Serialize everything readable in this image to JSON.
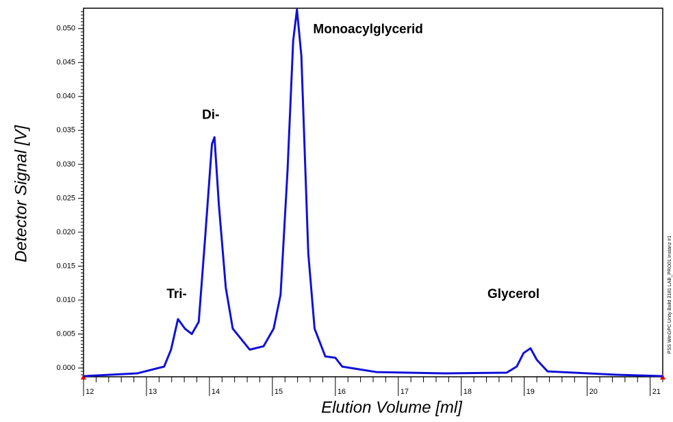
{
  "chart_data": {
    "type": "line",
    "y_label": "Detector Signal [V]",
    "x_label": "Elution Volume [ml]",
    "side_note": "PSS WinGPC Unity  Build 3181  LAB_PRO01  Instanz #1",
    "x": [
      12.0,
      12.85,
      13.28,
      13.39,
      13.5,
      13.61,
      13.72,
      13.83,
      13.93,
      14.04,
      14.08,
      14.15,
      14.26,
      14.37,
      14.64,
      14.86,
      15.02,
      15.13,
      15.24,
      15.33,
      15.39,
      15.46,
      15.57,
      15.67,
      15.84,
      16.0,
      16.11,
      16.65,
      17.74,
      18.72,
      18.88,
      18.99,
      19.1,
      19.2,
      19.37,
      20.46,
      21.2
    ],
    "series": [
      {
        "name": "Detector Signal",
        "color": "#1010d8",
        "values": [
          -0.0012,
          -0.0008,
          0.0002,
          0.0027,
          0.0072,
          0.0058,
          0.005,
          0.0068,
          0.019,
          0.033,
          0.034,
          0.024,
          0.0118,
          0.0058,
          0.0027,
          0.0032,
          0.0058,
          0.0108,
          0.029,
          0.0482,
          0.0528,
          0.046,
          0.0169,
          0.0058,
          0.0017,
          0.0015,
          0.0002,
          -0.0006,
          -0.0008,
          -0.0007,
          0.0002,
          0.0022,
          0.0029,
          0.0012,
          -0.0005,
          -0.001,
          -0.0012
        ]
      }
    ],
    "annotations": [
      {
        "text": "Tri-",
        "x": 13.48,
        "y": 0.0108
      },
      {
        "text": "Di-",
        "x": 14.02,
        "y": 0.0372
      },
      {
        "text": "Monoacylglycerid",
        "x": 16.52,
        "y": 0.0498
      },
      {
        "text": "Glycerol",
        "x": 18.83,
        "y": 0.0108
      }
    ],
    "xlim": [
      12,
      21.2
    ],
    "ylim": [
      -0.0013,
      0.053
    ],
    "xticks": [
      12,
      13,
      14,
      15,
      16,
      17,
      18,
      19,
      20,
      21
    ],
    "yticks": [
      {
        "value": 0,
        "label": "0.000"
      },
      {
        "value": 0.005,
        "label": "0.005"
      },
      {
        "value": 0.01,
        "label": "0.010"
      },
      {
        "value": 0.015,
        "label": "0.015"
      },
      {
        "value": 0.02,
        "label": "0.020"
      },
      {
        "value": 0.025,
        "label": "0.025"
      },
      {
        "value": 0.03,
        "label": "0.030"
      },
      {
        "value": 0.035,
        "label": "0.035"
      },
      {
        "value": 0.04,
        "label": "0.040"
      },
      {
        "value": 0.045,
        "label": "0.045"
      },
      {
        "value": 0.05,
        "label": "0.050"
      }
    ],
    "minor_ticks": {
      "x": 5,
      "y": 10
    },
    "grid": false
  }
}
